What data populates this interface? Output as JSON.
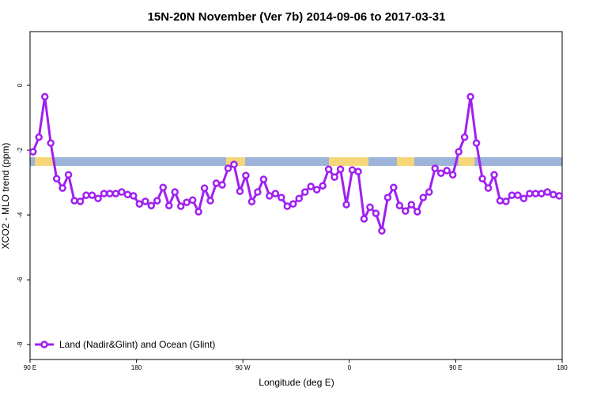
{
  "chart_data": {
    "type": "line",
    "title": "15N-20N November (Ver 7b)   2014-09-06 to 2017-03-31",
    "x_label": "Longitude (deg E)",
    "y_label": "XCO2 - MLO trend (ppm)",
    "xlim": [
      90,
      540
    ],
    "xticks": [
      {
        "value": 90,
        "label": "90 E"
      },
      180,
      {
        "value": 270,
        "label": "90 W"
      },
      {
        "value": 360,
        "label": "0"
      },
      {
        "value": 450,
        "label": "90 E"
      },
      {
        "value": 540,
        "label": "180"
      }
    ],
    "ylim": [
      -8.46,
      1.66
    ],
    "yticks": [
      0,
      -2,
      -4,
      -6,
      -8
    ],
    "grid": false,
    "legend": "bottom-left",
    "x": [
      92.5,
      97.5,
      102.5,
      107.5,
      112.5,
      117.5,
      122.5,
      127.5,
      132.5,
      137.5,
      142.5,
      147.5,
      152.5,
      157.5,
      162.5,
      167.5,
      172.5,
      177.5,
      182.5,
      187.5,
      192.5,
      197.5,
      202.5,
      207.5,
      212.5,
      217.5,
      222.5,
      227.5,
      232.5,
      237.5,
      242.5,
      247.5,
      252.5,
      257.5,
      262.5,
      267.5,
      272.5,
      277.5,
      282.5,
      287.5,
      292.5,
      297.5,
      302.5,
      307.5,
      312.5,
      317.5,
      322.5,
      327.5,
      332.5,
      337.5,
      342.5,
      347.5,
      352.5,
      357.5,
      362.5,
      367.5,
      372.5,
      377.5,
      382.5,
      387.5,
      392.5,
      397.5,
      402.5,
      407.5,
      412.5,
      417.5,
      422.5,
      427.5,
      432.5,
      437.5,
      442.5,
      447.5,
      452.5,
      457.5,
      462.5,
      467.5,
      472.5,
      477.5,
      482.5,
      487.5,
      492.5,
      497.5,
      502.5,
      507.5,
      512.5,
      517.5,
      522.5,
      527.5,
      532.5,
      537.5
    ],
    "series": [
      {
        "name": "Land (Nadir&Glint) and Ocean (Glint)",
        "color": "#a020f0",
        "values": [
          -2.05,
          -1.6,
          -0.35,
          -1.78,
          -2.88,
          -3.17,
          -2.76,
          -3.56,
          -3.58,
          -3.39,
          -3.39,
          -3.49,
          -3.34,
          -3.34,
          -3.34,
          -3.29,
          -3.37,
          -3.41,
          -3.66,
          -3.58,
          -3.71,
          -3.56,
          -3.15,
          -3.71,
          -3.29,
          -3.73,
          -3.61,
          -3.54,
          -3.9,
          -3.17,
          -3.56,
          -3.02,
          -3.07,
          -2.56,
          -2.44,
          -3.27,
          -2.78,
          -3.59,
          -3.29,
          -2.9,
          -3.41,
          -3.34,
          -3.46,
          -3.73,
          -3.66,
          -3.49,
          -3.29,
          -3.12,
          -3.22,
          -3.1,
          -2.59,
          -2.83,
          -2.59,
          -3.68,
          -2.61,
          -2.66,
          -4.12,
          -3.76,
          -3.95,
          -4.49,
          -3.46,
          -3.15,
          -3.71,
          -3.88,
          -3.68,
          -3.9,
          -3.46,
          -3.29,
          -2.56,
          -2.71,
          -2.63,
          -2.76,
          -2.05,
          -1.6,
          -0.35,
          -1.78,
          -2.88,
          -3.17,
          -2.76,
          -3.56,
          -3.58,
          -3.39,
          -3.39,
          -3.49,
          -3.34,
          -3.34,
          -3.34,
          -3.29,
          -3.37,
          -3.41
        ]
      }
    ]
  }
}
